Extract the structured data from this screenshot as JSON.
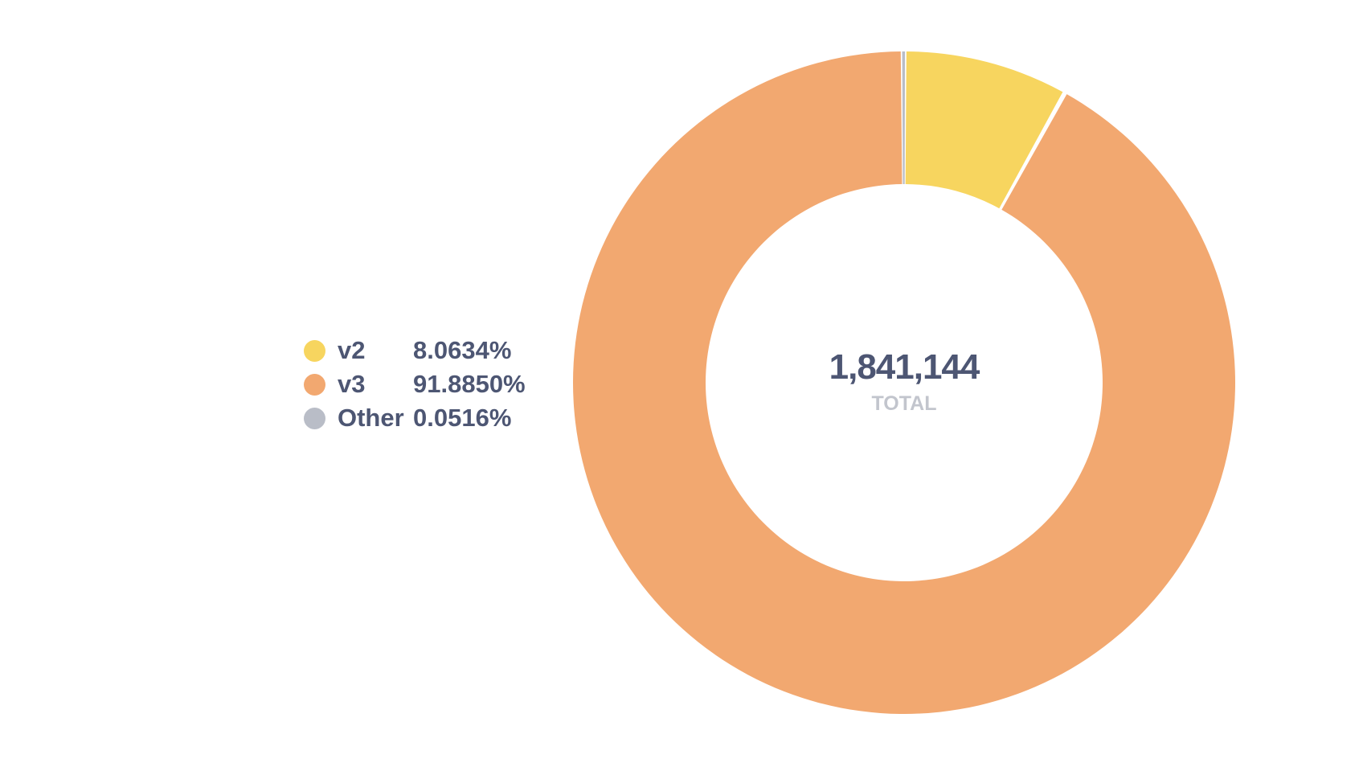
{
  "chart_data": {
    "type": "pie",
    "categories": [
      "v2",
      "v3",
      "Other"
    ],
    "values": [
      8.0634,
      91.885,
      0.0516
    ],
    "value_labels": [
      "8.0634%",
      "91.8850%",
      "0.0516%"
    ],
    "colors": [
      "#f7d55f",
      "#f2a870",
      "#b9bdc7"
    ],
    "donut": true,
    "legend_position": "left",
    "center_total": "1,841,144",
    "center_caption": "TOTAL"
  }
}
